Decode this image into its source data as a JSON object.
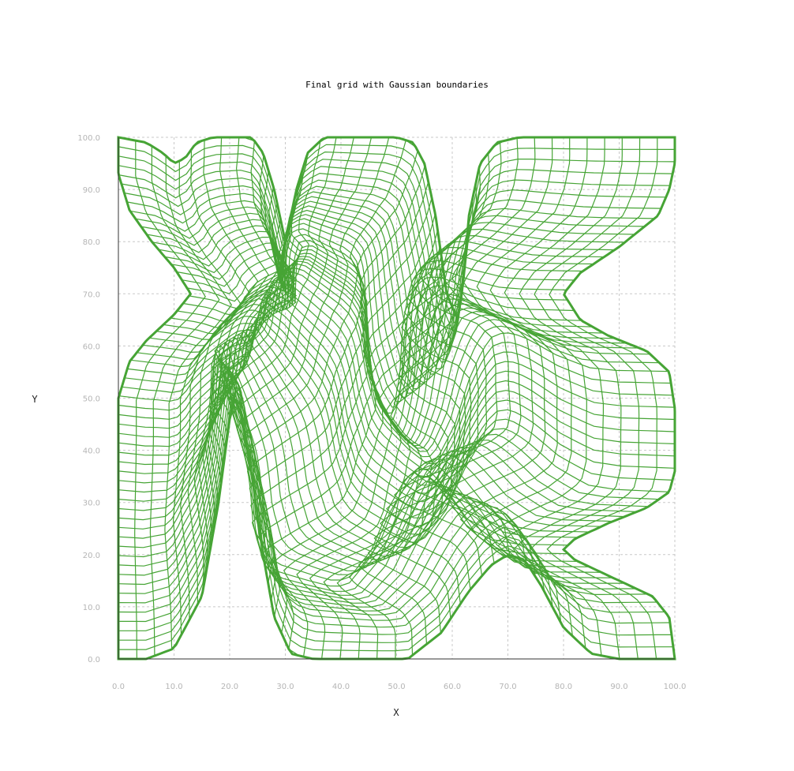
{
  "chart_data": {
    "type": "line",
    "title": "Final grid with Gaussian boundaries",
    "xlabel": "X",
    "ylabel": "Y",
    "xlim": [
      0,
      100
    ],
    "ylim": [
      0,
      100
    ],
    "x_ticks": [
      "0.0",
      "10.0",
      "20.0",
      "30.0",
      "40.0",
      "50.0",
      "60.0",
      "70.0",
      "80.0",
      "90.0",
      "100.0"
    ],
    "y_ticks": [
      "0.0",
      "10.0",
      "20.0",
      "30.0",
      "40.0",
      "50.0",
      "60.0",
      "70.0",
      "80.0",
      "90.0",
      "100.0"
    ],
    "grid": true,
    "legend": "none",
    "line_color": "#46a435",
    "boundaries": {
      "bottom": [
        [
          0,
          0
        ],
        [
          5,
          0
        ],
        [
          10,
          2
        ],
        [
          15,
          12
        ],
        [
          18,
          30
        ],
        [
          20,
          46
        ],
        [
          21,
          50
        ],
        [
          22,
          47
        ],
        [
          24,
          35
        ],
        [
          26,
          20
        ],
        [
          28,
          8
        ],
        [
          31,
          1
        ],
        [
          35,
          0
        ],
        [
          52,
          0
        ],
        [
          58,
          5
        ],
        [
          63,
          13
        ],
        [
          67,
          18
        ],
        [
          70,
          20
        ],
        [
          73,
          19
        ],
        [
          76,
          14
        ],
        [
          80,
          6
        ],
        [
          85,
          1
        ],
        [
          90,
          0
        ],
        [
          100,
          0
        ]
      ],
      "right": [
        [
          100,
          0
        ],
        [
          99,
          8
        ],
        [
          96,
          12
        ],
        [
          92,
          14
        ],
        [
          86,
          17
        ],
        [
          82,
          19
        ],
        [
          80,
          21
        ],
        [
          82,
          23
        ],
        [
          88,
          26
        ],
        [
          95,
          29
        ],
        [
          99,
          32
        ],
        [
          100,
          36
        ],
        [
          100,
          48
        ],
        [
          99,
          55
        ],
        [
          95,
          59
        ],
        [
          88,
          62
        ],
        [
          83,
          65
        ],
        [
          80,
          70
        ],
        [
          83,
          74
        ],
        [
          90,
          79
        ],
        [
          97,
          85
        ],
        [
          99,
          90
        ],
        [
          100,
          95
        ],
        [
          100,
          100
        ]
      ],
      "top": [
        [
          100,
          100
        ],
        [
          72,
          100
        ],
        [
          68,
          99
        ],
        [
          65,
          95
        ],
        [
          63,
          85
        ],
        [
          62,
          73
        ],
        [
          61,
          65
        ],
        [
          59,
          70
        ],
        [
          57,
          85
        ],
        [
          55,
          95
        ],
        [
          53,
          99
        ],
        [
          50,
          100
        ],
        [
          37,
          100
        ],
        [
          34,
          97
        ],
        [
          32,
          90
        ],
        [
          30,
          80
        ],
        [
          28,
          90
        ],
        [
          26,
          97
        ],
        [
          24,
          100
        ],
        [
          17,
          100
        ],
        [
          14,
          99
        ],
        [
          12,
          96
        ],
        [
          10,
          95
        ],
        [
          8,
          97
        ],
        [
          5,
          99
        ],
        [
          0,
          100
        ]
      ],
      "left": [
        [
          0,
          100
        ],
        [
          0,
          93
        ],
        [
          2,
          86
        ],
        [
          6,
          80
        ],
        [
          10,
          75
        ],
        [
          13,
          70
        ],
        [
          10,
          66
        ],
        [
          5,
          61
        ],
        [
          2,
          57
        ],
        [
          0,
          50
        ],
        [
          0,
          0
        ]
      ]
    }
  }
}
